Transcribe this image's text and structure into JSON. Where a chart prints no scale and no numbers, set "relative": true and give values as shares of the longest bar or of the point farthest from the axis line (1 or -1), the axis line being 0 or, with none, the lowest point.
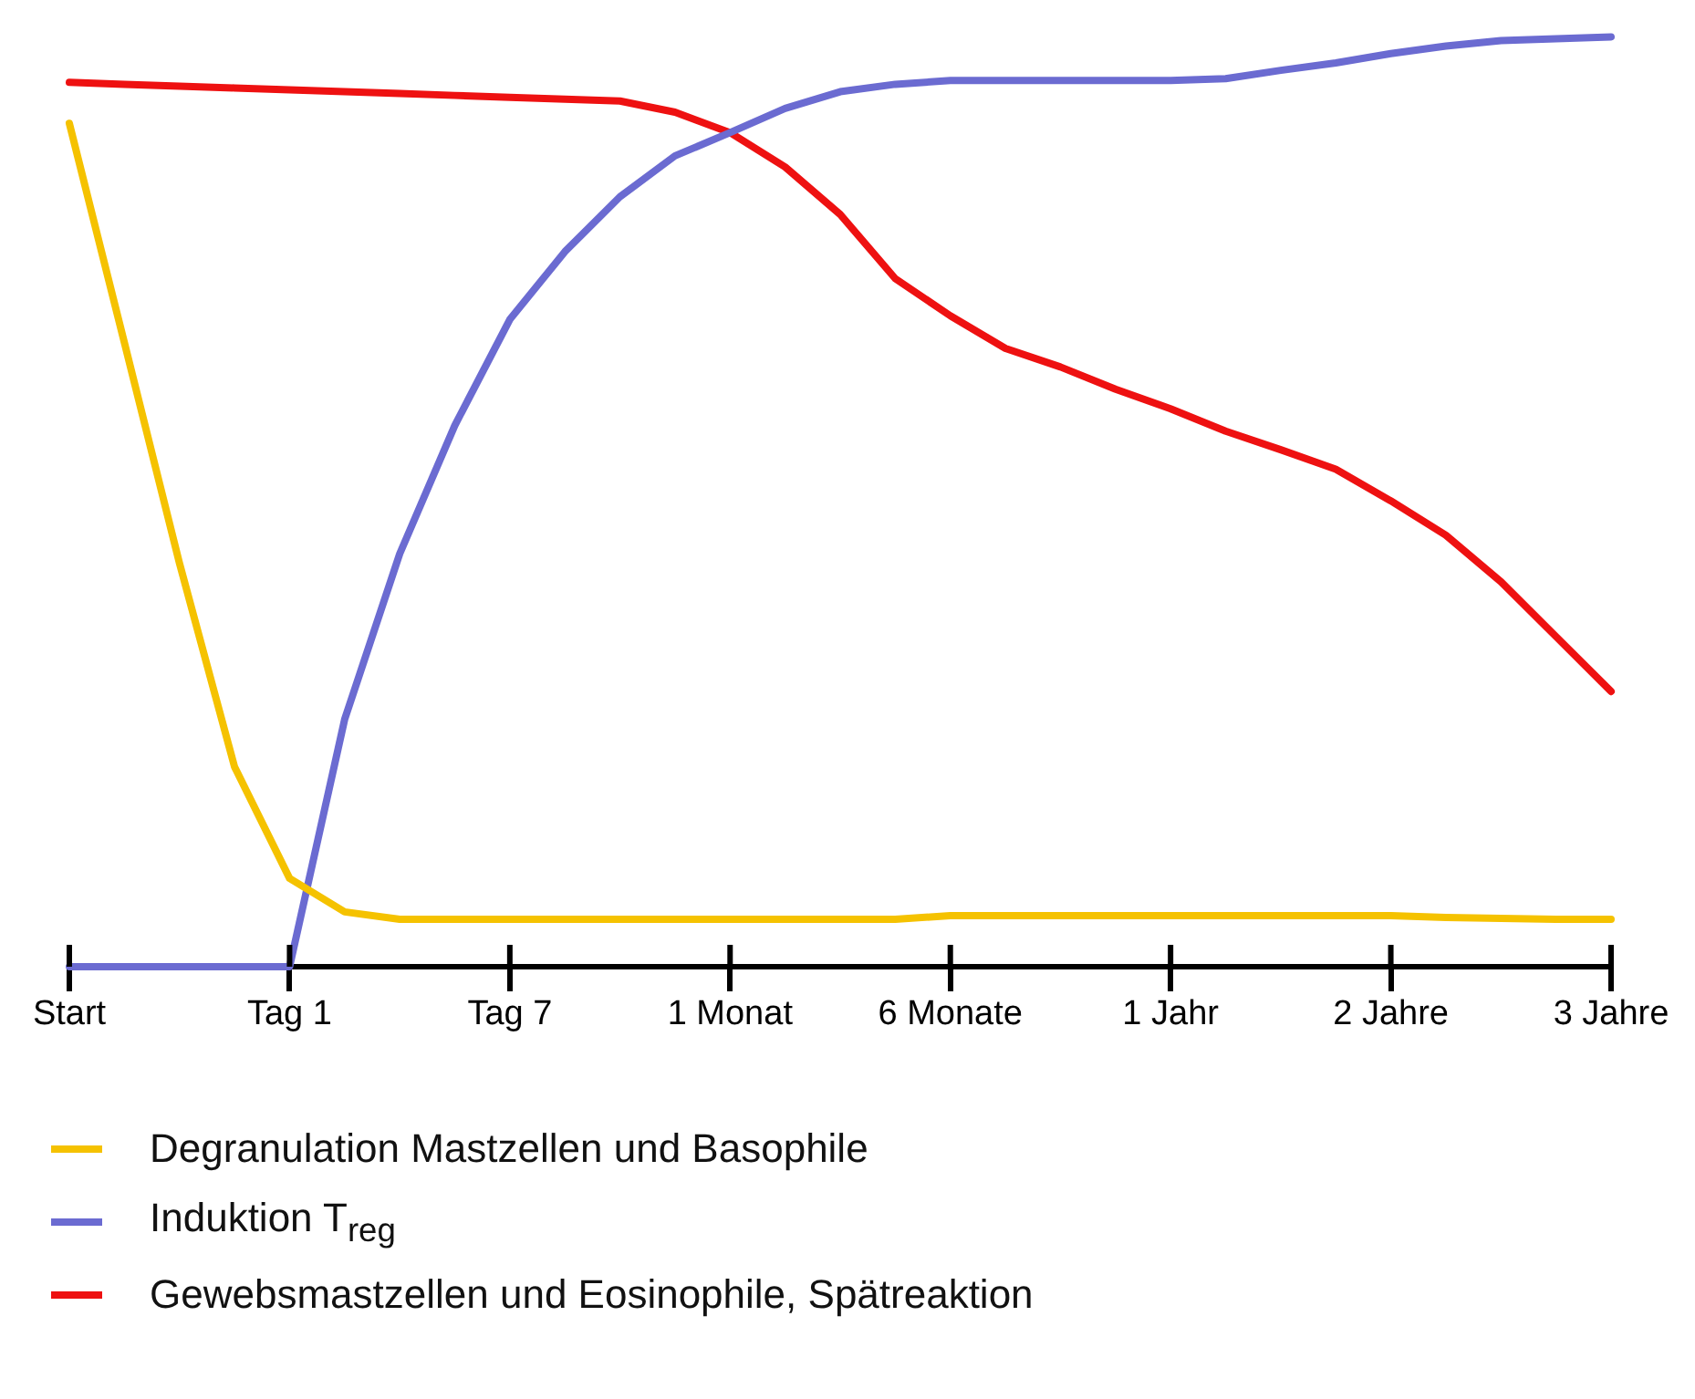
{
  "chart_data": {
    "type": "line",
    "relative": true,
    "legend": "bottom",
    "marker": "none",
    "line_style": "solid",
    "grid": false,
    "categories": [
      "Start",
      null,
      null,
      null,
      "Tag 1",
      null,
      null,
      null,
      "Tag 7",
      null,
      null,
      null,
      "1 Monat",
      null,
      null,
      null,
      "6 Monate",
      null,
      null,
      null,
      "1 Jahr",
      null,
      null,
      null,
      "2 Jahre",
      null,
      null,
      null,
      "3 Jahre"
    ],
    "series": [
      {
        "name": "Degranulation Mastzellen und Basophile",
        "color": "#f5c200",
        "values": [
          0.907,
          0.671,
          0.434,
          0.215,
          0.095,
          0.059,
          0.051,
          0.051,
          0.051,
          0.051,
          0.051,
          0.051,
          0.051,
          0.051,
          0.051,
          0.051,
          0.055,
          0.055,
          0.055,
          0.055,
          0.055,
          0.055,
          0.055,
          0.055,
          0.055,
          0.053,
          0.052,
          0.051,
          0.051
        ]
      },
      {
        "name": "Induktion T$_{reg}$",
        "color": "#6b6bd1",
        "values": [
          0,
          0,
          0,
          0,
          0,
          0.266,
          0.444,
          0.582,
          0.696,
          0.769,
          0.828,
          0.872,
          0.897,
          0.923,
          0.941,
          0.949,
          0.953,
          0.953,
          0.953,
          0.953,
          0.953,
          0.955,
          0.964,
          0.972,
          0.982,
          0.99,
          0.996,
          0.998,
          1.0
        ]
      },
      {
        "name": "Gewebsmastzellen und Eosinophile, Spätreaktion",
        "color": "#ee1111",
        "values": [
          0.951,
          0.949,
          0.947,
          0.945,
          0.943,
          0.941,
          0.939,
          0.937,
          0.935,
          0.933,
          0.931,
          0.919,
          0.897,
          0.86,
          0.809,
          0.74,
          0.7,
          0.665,
          0.645,
          0.621,
          0.6,
          0.576,
          0.556,
          0.535,
          0.501,
          0.464,
          0.414,
          0.355,
          0.296
        ]
      }
    ]
  }
}
